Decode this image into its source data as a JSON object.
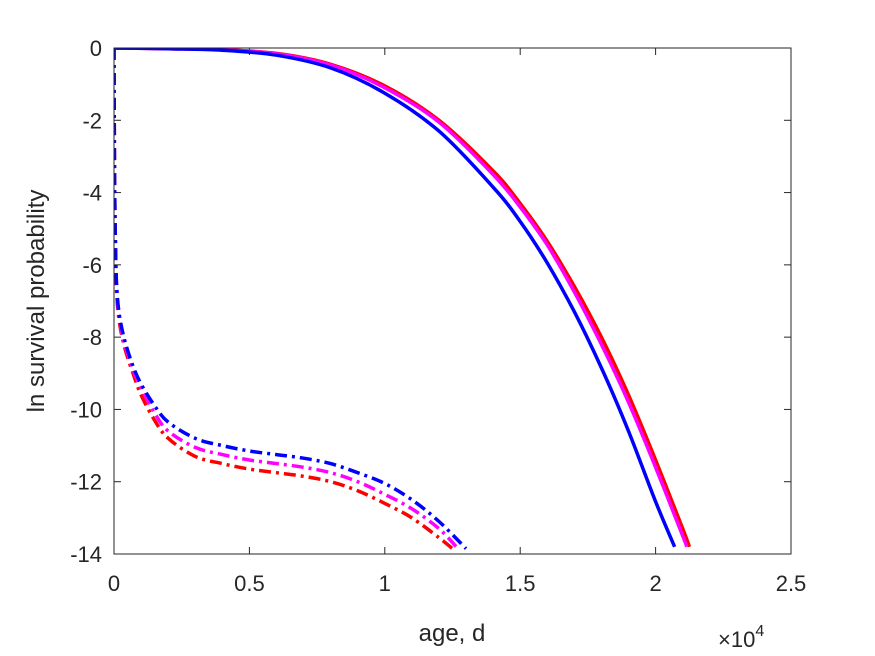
{
  "chart_data": {
    "type": "line",
    "xlabel": "age, d",
    "ylabel": "ln survival probability",
    "x_multiplier_label": "×10",
    "x_multiplier_exponent": "4",
    "xlim": [
      0,
      25000
    ],
    "ylim": [
      -14,
      0
    ],
    "x_ticks": [
      0,
      5000,
      10000,
      15000,
      20000,
      25000
    ],
    "x_tick_labels": [
      "0",
      "0.5",
      "1",
      "1.5",
      "2",
      "2.5"
    ],
    "y_ticks": [
      0,
      -2,
      -4,
      -6,
      -8,
      -10,
      -12,
      -14
    ],
    "y_tick_labels": [
      "0",
      "-2",
      "-4",
      "-6",
      "-8",
      "-10",
      "-12",
      "-14"
    ],
    "grid": false,
    "series": [
      {
        "color": "#ff0000",
        "style": "solid",
        "x": [
          0,
          2000,
          4000,
          6000,
          8000,
          10000,
          12000,
          14000,
          15000,
          16000,
          17000,
          18000,
          19000,
          20000,
          21000,
          21250
        ],
        "y": [
          0,
          -0.02,
          -0.05,
          -0.15,
          -0.45,
          -1.05,
          -2.0,
          -3.4,
          -4.3,
          -5.35,
          -6.6,
          -8.0,
          -9.6,
          -11.4,
          -13.3,
          -13.8
        ]
      },
      {
        "color": "#ff00ff",
        "style": "solid",
        "x": [
          0,
          2000,
          4000,
          6000,
          8000,
          10000,
          12000,
          14000,
          15000,
          16000,
          17000,
          18000,
          19000,
          20000,
          21000,
          21150
        ],
        "y": [
          0,
          -0.02,
          -0.05,
          -0.16,
          -0.47,
          -1.1,
          -2.05,
          -3.5,
          -4.4,
          -5.45,
          -6.75,
          -8.2,
          -9.8,
          -11.6,
          -13.5,
          -13.8
        ]
      },
      {
        "color": "#0000ff",
        "style": "solid",
        "x": [
          0,
          2000,
          4000,
          6000,
          8000,
          10000,
          12000,
          14000,
          15000,
          16000,
          17000,
          18000,
          19000,
          20000,
          20700
        ],
        "y": [
          0,
          -0.02,
          -0.06,
          -0.2,
          -0.55,
          -1.25,
          -2.3,
          -3.85,
          -4.8,
          -5.95,
          -7.3,
          -8.85,
          -10.6,
          -12.55,
          -13.8
        ]
      },
      {
        "color": "#ff0000",
        "style": "dashdot",
        "x": [
          0,
          20,
          50,
          100,
          200,
          400,
          700,
          1000,
          1500,
          2000,
          3000,
          4000,
          5000,
          6000,
          7000,
          8000,
          9000,
          10000,
          11000,
          12000,
          12500
        ],
        "y": [
          0,
          -3.5,
          -5.5,
          -6.8,
          -7.6,
          -8.3,
          -9.0,
          -9.6,
          -10.3,
          -10.8,
          -11.3,
          -11.5,
          -11.65,
          -11.75,
          -11.85,
          -12.0,
          -12.25,
          -12.6,
          -13.0,
          -13.55,
          -13.85
        ]
      },
      {
        "color": "#ff00ff",
        "style": "dashdot",
        "x": [
          0,
          20,
          50,
          100,
          200,
          400,
          700,
          1000,
          1500,
          2000,
          3000,
          4000,
          5000,
          6000,
          7000,
          8000,
          9000,
          10000,
          11000,
          12000,
          12700
        ],
        "y": [
          0,
          -3.5,
          -5.4,
          -6.7,
          -7.5,
          -8.2,
          -8.9,
          -9.4,
          -10.1,
          -10.6,
          -11.05,
          -11.25,
          -11.4,
          -11.5,
          -11.6,
          -11.75,
          -12.0,
          -12.35,
          -12.75,
          -13.3,
          -13.85
        ]
      },
      {
        "color": "#0000ff",
        "style": "dashdot",
        "x": [
          0,
          20,
          50,
          100,
          200,
          400,
          700,
          1000,
          1500,
          2000,
          3000,
          4000,
          5000,
          6000,
          7000,
          8000,
          9000,
          10000,
          11000,
          12000,
          13000
        ],
        "y": [
          0,
          -3.4,
          -5.3,
          -6.6,
          -7.4,
          -8.1,
          -8.8,
          -9.3,
          -9.9,
          -10.35,
          -10.8,
          -11.0,
          -11.15,
          -11.25,
          -11.35,
          -11.5,
          -11.75,
          -12.05,
          -12.5,
          -13.1,
          -13.85
        ]
      }
    ]
  }
}
